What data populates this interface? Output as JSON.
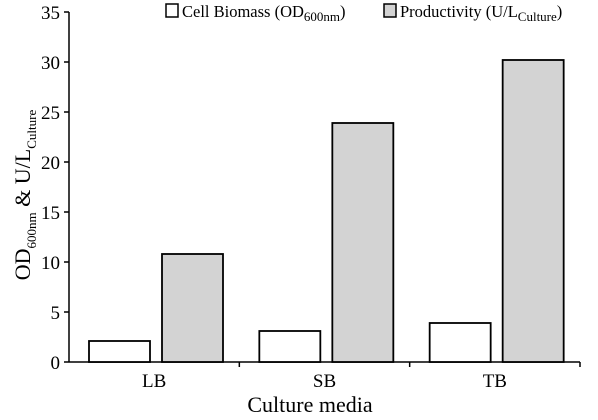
{
  "chart_data": {
    "type": "bar",
    "categories": [
      "LB",
      "SB",
      "TB"
    ],
    "series": [
      {
        "name": "Cell Biomass (OD600nm)",
        "legend_main": "Cell Biomass (OD",
        "legend_sub": "600nm",
        "legend_close": ")",
        "values": [
          2.1,
          3.1,
          3.9
        ],
        "color": "#ffffff"
      },
      {
        "name": "Productivity (U/LCulture)",
        "legend_main": "Productivity (U/L",
        "legend_sub": "Culture",
        "legend_close": ")",
        "values": [
          10.8,
          23.9,
          30.2
        ],
        "color": "#d3d3d3"
      }
    ],
    "xlabel": "Culture media",
    "ylabel": {
      "part1": "OD",
      "sub1": "600nm",
      "part2": " & U/L",
      "sub2": "Culture"
    },
    "ylim": [
      0,
      35
    ],
    "yticks": [
      0,
      5,
      10,
      15,
      20,
      25,
      30,
      35
    ],
    "grid": false,
    "legend_position": "top"
  }
}
